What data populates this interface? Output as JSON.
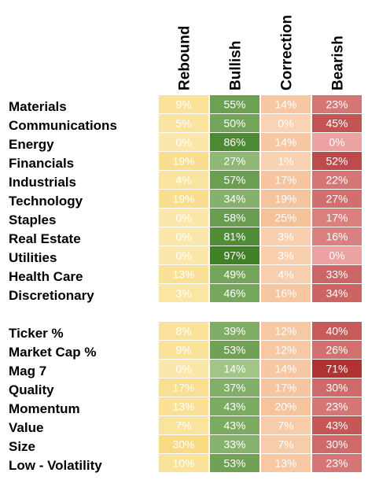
{
  "chart_data": {
    "type": "heatmap",
    "columns": [
      "Rebound",
      "Bullish",
      "Correction",
      "Bearish"
    ],
    "groups": [
      {
        "rows": [
          {
            "label": "Materials",
            "values": [
              "9%",
              "55%",
              "14%",
              "23%"
            ]
          },
          {
            "label": "Communications",
            "values": [
              "5%",
              "50%",
              "0%",
              "45%"
            ]
          },
          {
            "label": "Energy",
            "values": [
              "0%",
              "86%",
              "14%",
              "0%"
            ]
          },
          {
            "label": "Financials",
            "values": [
              "19%",
              "27%",
              "1%",
              "52%"
            ]
          },
          {
            "label": "Industrials",
            "values": [
              "4%",
              "57%",
              "17%",
              "22%"
            ]
          },
          {
            "label": "Technology",
            "values": [
              "19%",
              "34%",
              "19%",
              "27%"
            ]
          },
          {
            "label": "Staples",
            "values": [
              "0%",
              "58%",
              "25%",
              "17%"
            ]
          },
          {
            "label": "Real Estate",
            "values": [
              "0%",
              "81%",
              "3%",
              "16%"
            ]
          },
          {
            "label": "Utilities",
            "values": [
              "0%",
              "97%",
              "3%",
              "0%"
            ]
          },
          {
            "label": "Health Care",
            "values": [
              "13%",
              "49%",
              "4%",
              "33%"
            ]
          },
          {
            "label": "Discretionary",
            "values": [
              "3%",
              "46%",
              "16%",
              "34%"
            ]
          }
        ]
      },
      {
        "rows": [
          {
            "label": "Ticker %",
            "values": [
              "8%",
              "39%",
              "12%",
              "40%"
            ]
          },
          {
            "label": "Market Cap %",
            "values": [
              "9%",
              "53%",
              "12%",
              "26%"
            ]
          },
          {
            "label": "Mag 7",
            "values": [
              "0%",
              "14%",
              "14%",
              "71%"
            ]
          },
          {
            "label": "Quality",
            "values": [
              "17%",
              "37%",
              "17%",
              "30%"
            ]
          },
          {
            "label": "Momentum",
            "values": [
              "13%",
              "43%",
              "20%",
              "23%"
            ]
          },
          {
            "label": "Value",
            "values": [
              "7%",
              "43%",
              "7%",
              "43%"
            ]
          },
          {
            "label": "Size",
            "values": [
              "30%",
              "33%",
              "7%",
              "30%"
            ]
          },
          {
            "label": "Low - Volatility",
            "values": [
              "10%",
              "53%",
              "13%",
              "23%"
            ]
          }
        ]
      }
    ],
    "color_scales": {
      "Rebound": {
        "low": "#fbe7a9",
        "high": "#f3c548"
      },
      "Bullish": {
        "low": "#b9d7a0",
        "high": "#3f7e24"
      },
      "Correction": {
        "low": "#f9d3b4",
        "high": "#eb9b5f"
      },
      "Bearish": {
        "low": "#eda2a2",
        "high": "#9e0f0f"
      }
    }
  }
}
